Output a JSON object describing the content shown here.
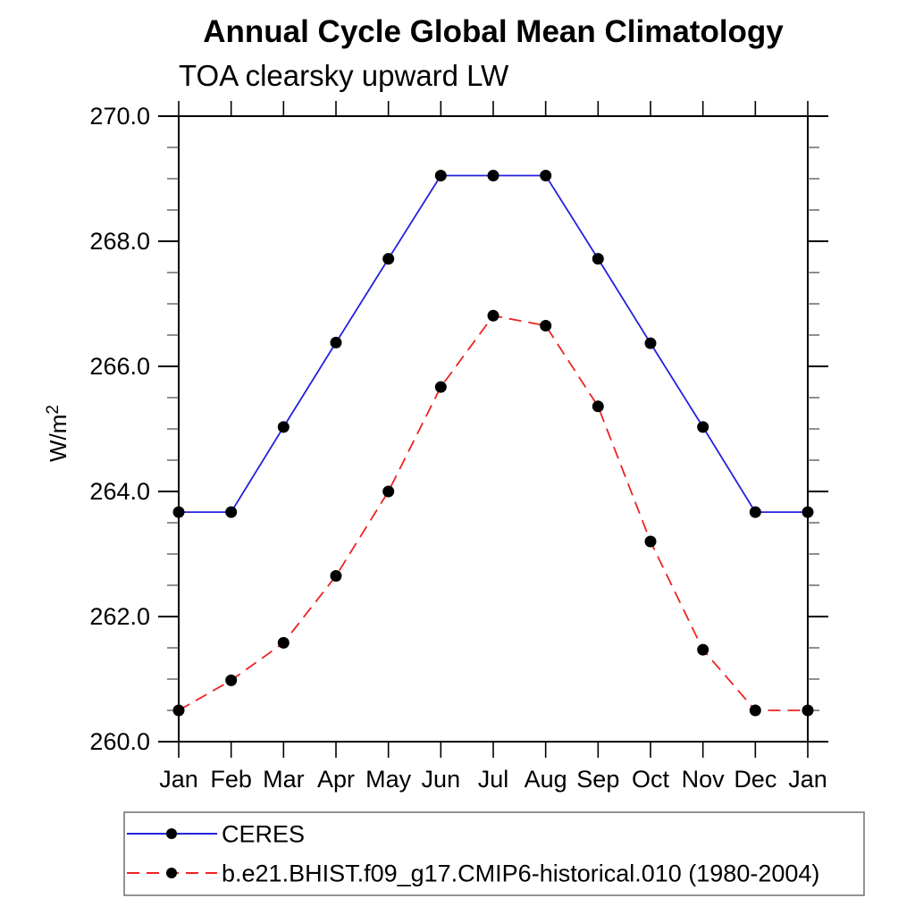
{
  "header": {
    "title": "Annual Cycle Global Mean Climatology",
    "subtitle": "TOA clearsky upward LW"
  },
  "chart_data": {
    "type": "line",
    "title": "Annual Cycle Global Mean Climatology",
    "subtitle": "TOA clearsky upward LW",
    "xlabel": "",
    "ylabel": "W/m²",
    "ylabel_base": "W/m",
    "ylabel_exponent": "2",
    "categories": [
      "Jan",
      "Feb",
      "Mar",
      "Apr",
      "May",
      "Jun",
      "Jul",
      "Aug",
      "Sep",
      "Oct",
      "Nov",
      "Dec",
      "Jan"
    ],
    "ylim": [
      260.0,
      270.0
    ],
    "y_major_ticks": [
      260.0,
      262.0,
      264.0,
      266.0,
      268.0,
      270.0
    ],
    "y_major_tick_labels": [
      "260.0",
      "262.0",
      "264.0",
      "266.0",
      "268.0",
      "270.0"
    ],
    "y_minor_tick_step": 0.5,
    "grid": false,
    "legend_position": "bottom",
    "frame_color": "#000000",
    "series": [
      {
        "name": "CERES",
        "color": "#2222dd",
        "line_style": "solid",
        "marker": "filled-circle",
        "marker_color": "#000000",
        "values": [
          263.67,
          263.67,
          265.03,
          266.38,
          267.72,
          269.05,
          269.05,
          269.05,
          267.72,
          266.37,
          265.03,
          263.67,
          263.67
        ]
      },
      {
        "name": "b.e21.BHIST.f09_g17.CMIP6-historical.010 (1980-2004)",
        "color": "#ee2222",
        "line_style": "dashed",
        "marker": "filled-circle",
        "marker_color": "#000000",
        "values": [
          260.5,
          260.98,
          261.58,
          262.65,
          264.0,
          265.67,
          266.81,
          266.65,
          265.36,
          263.2,
          261.47,
          260.5,
          260.5
        ]
      }
    ]
  }
}
